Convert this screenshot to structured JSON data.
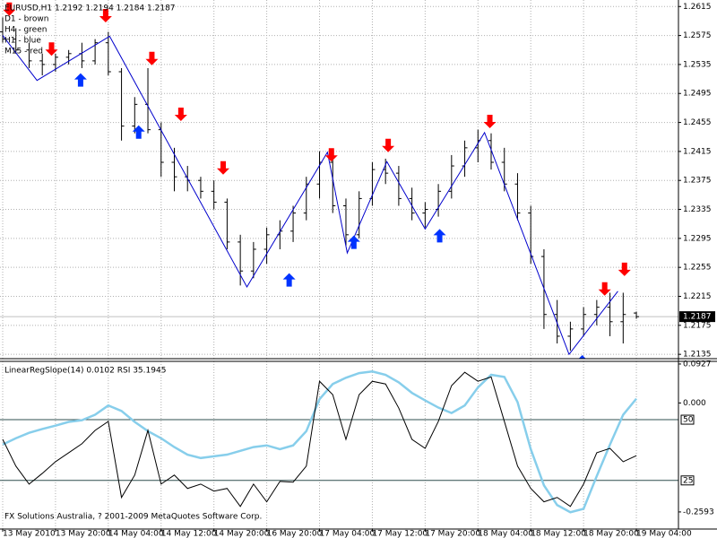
{
  "chart_data": [
    {
      "type": "ohlc",
      "title": "EURUSD,H1  1.2192 1.2194 1.2184 1.2187",
      "annotations": [
        "D1 - brown",
        "H4 - green",
        "H1 - blue",
        "M15 - red"
      ],
      "categories": [
        "13 May 2010",
        null,
        null,
        null,
        "13 May 20:00",
        null,
        null,
        null,
        "14 May 04:00",
        null,
        null,
        null,
        "14 May 12:00",
        null,
        null,
        null,
        "14 May 20:00",
        null,
        null,
        null,
        "16 May 20:00",
        null,
        null,
        null,
        "17 May 04:00",
        null,
        null,
        null,
        "17 May 12:00",
        null,
        null,
        null,
        "17 May 20:00",
        null,
        null,
        null,
        "18 May 04:00",
        null,
        null,
        null,
        "18 May 12:00",
        null,
        null,
        null,
        "18 May 20:00",
        null,
        null,
        null,
        "19 May 04:00"
      ],
      "ohlc": {
        "open": [
          1.258,
          1.257,
          1.2555,
          1.254,
          1.2535,
          1.2545,
          1.255,
          1.254,
          1.2565,
          1.2525,
          1.245,
          1.248,
          1.2445,
          1.24,
          1.238,
          1.2375,
          1.236,
          1.2345,
          1.229,
          1.225,
          1.228,
          1.23,
          1.2305,
          1.233,
          1.237,
          1.24,
          1.234,
          1.23,
          1.235,
          1.239,
          1.2385,
          1.235,
          1.233,
          1.2335,
          1.236,
          1.2395,
          1.242,
          1.243,
          1.24,
          1.237,
          1.233,
          1.227,
          1.219,
          1.216,
          1.217,
          1.219,
          1.22,
          1.218,
          1.2192
        ],
        "high": [
          1.26,
          1.2585,
          1.2565,
          1.255,
          1.255,
          1.2555,
          1.2565,
          1.257,
          1.258,
          1.253,
          1.249,
          1.253,
          1.2455,
          1.242,
          1.2395,
          1.238,
          1.2375,
          1.235,
          1.23,
          1.229,
          1.231,
          1.232,
          1.234,
          1.238,
          1.2415,
          1.241,
          1.235,
          1.236,
          1.24,
          1.2405,
          1.2395,
          1.2365,
          1.2345,
          1.237,
          1.241,
          1.243,
          1.2445,
          1.244,
          1.242,
          1.2385,
          1.234,
          1.228,
          1.221,
          1.218,
          1.22,
          1.221,
          1.222,
          1.222,
          1.2194
        ],
        "low": [
          1.2565,
          1.255,
          1.253,
          1.252,
          1.2525,
          1.2535,
          1.253,
          1.2535,
          1.252,
          1.243,
          1.244,
          1.244,
          1.238,
          1.236,
          1.236,
          1.235,
          1.2335,
          1.228,
          1.223,
          1.224,
          1.226,
          1.228,
          1.229,
          1.232,
          1.235,
          1.233,
          1.2285,
          1.2295,
          1.234,
          1.237,
          1.234,
          1.232,
          1.231,
          1.2325,
          1.235,
          1.238,
          1.24,
          1.239,
          1.236,
          1.232,
          1.226,
          1.217,
          1.215,
          1.214,
          1.216,
          1.2175,
          1.216,
          1.215,
          1.2184
        ],
        "close": [
          1.257,
          1.2555,
          1.254,
          1.2535,
          1.2545,
          1.255,
          1.254,
          1.2565,
          1.2525,
          1.245,
          1.248,
          1.2445,
          1.24,
          1.238,
          1.2375,
          1.236,
          1.2345,
          1.229,
          1.225,
          1.228,
          1.23,
          1.2305,
          1.233,
          1.237,
          1.24,
          1.234,
          1.23,
          1.235,
          1.239,
          1.2385,
          1.235,
          1.233,
          1.2335,
          1.236,
          1.2395,
          1.242,
          1.243,
          1.24,
          1.237,
          1.233,
          1.227,
          1.219,
          1.216,
          1.217,
          1.219,
          1.22,
          1.218,
          1.219,
          1.2187
        ]
      },
      "color": "#000000",
      "zigzag": {
        "color": "#0000cc",
        "x": [
          0,
          2.6,
          8.1,
          18.5,
          24.6,
          26.1,
          29.1,
          32,
          36.5,
          42.9,
          46.6
        ],
        "values": [
          1.2575,
          1.2513,
          1.2574,
          1.2228,
          1.2414,
          1.2275,
          1.2401,
          1.2308,
          1.2441,
          1.2135,
          1.2222
        ]
      },
      "down_arrows": {
        "color": "#ff0000",
        "x": [
          0.5,
          3.7,
          7.8,
          11.3,
          13.5,
          16.7,
          24.9,
          29.2,
          36.9,
          45.6,
          47.1
        ],
        "values": [
          1.2602,
          1.2547,
          1.2593,
          1.2534,
          1.2457,
          1.2383,
          1.2401,
          1.2414,
          1.2447,
          1.2216,
          1.2243
        ]
      },
      "up_arrows": {
        "color": "#0033ff",
        "x": [
          5.9,
          10.3,
          21.7,
          26.6,
          33.1,
          43.9
        ],
        "values": [
          1.2523,
          1.2451,
          1.2247,
          1.2299,
          1.2308,
          1.2134
        ]
      },
      "ylim": [
        1.2129,
        1.2624
      ],
      "yticks": [
        1.2615,
        1.2575,
        1.2535,
        1.2495,
        1.2455,
        1.2415,
        1.2375,
        1.2335,
        1.2295,
        1.2255,
        1.2215,
        1.2175,
        1.2135
      ],
      "grid": true
    },
    {
      "type": "line",
      "title": "LinearRegSlope(14) 0.0102  RSI 35.1945",
      "footer": "FX Solutions Australia, ? 2001-2009 MetaQuotes Software Corp.",
      "series": [
        {
          "color": "#87ceeb",
          "values": [
            -0.099,
            -0.084,
            -0.071,
            -0.062,
            -0.054,
            -0.045,
            -0.041,
            -0.028,
            -0.006,
            -0.019,
            -0.045,
            -0.067,
            -0.084,
            -0.105,
            -0.123,
            -0.131,
            -0.127,
            -0.123,
            -0.114,
            -0.105,
            -0.101,
            -0.11,
            -0.101,
            -0.067,
            0.009,
            0.045,
            0.06,
            0.071,
            0.075,
            0.067,
            0.049,
            0.024,
            0.006,
            -0.011,
            -0.024,
            -0.006,
            0.037,
            0.067,
            0.062,
            0.002,
            -0.11,
            -0.196,
            -0.243,
            -0.26,
            -0.252,
            -0.174,
            -0.099,
            -0.028,
            0.0102
          ]
        },
        {
          "color": "#000000",
          "axis": "y2",
          "values": [
            41.9,
            30.9,
            23.5,
            27.9,
            32.7,
            36.4,
            40.1,
            45.6,
            49.3,
            18.0,
            27.2,
            45.6,
            23.5,
            27.2,
            21.7,
            23.5,
            20.6,
            21.7,
            14.3,
            23.5,
            16.2,
            24.6,
            24.3,
            30.9,
            65.8,
            60.3,
            41.9,
            60.3,
            65.8,
            64.7,
            54.8,
            41.9,
            38.2,
            49.3,
            64.0,
            69.5,
            65.8,
            67.6,
            49.3,
            30.9,
            21.7,
            16.2,
            18.0,
            14.3,
            23.5,
            36.4,
            38.2,
            32.7,
            35.1945
          ]
        }
      ],
      "ylim": [
        -0.3,
        0.099
      ],
      "yticks": [
        0.0927,
        {
          "value": 0,
          "label": "0.000"
        },
        -0.2593
      ],
      "y2lim": [
        5,
        74
      ],
      "y2ticks": [
        50,
        25
      ]
    }
  ]
}
